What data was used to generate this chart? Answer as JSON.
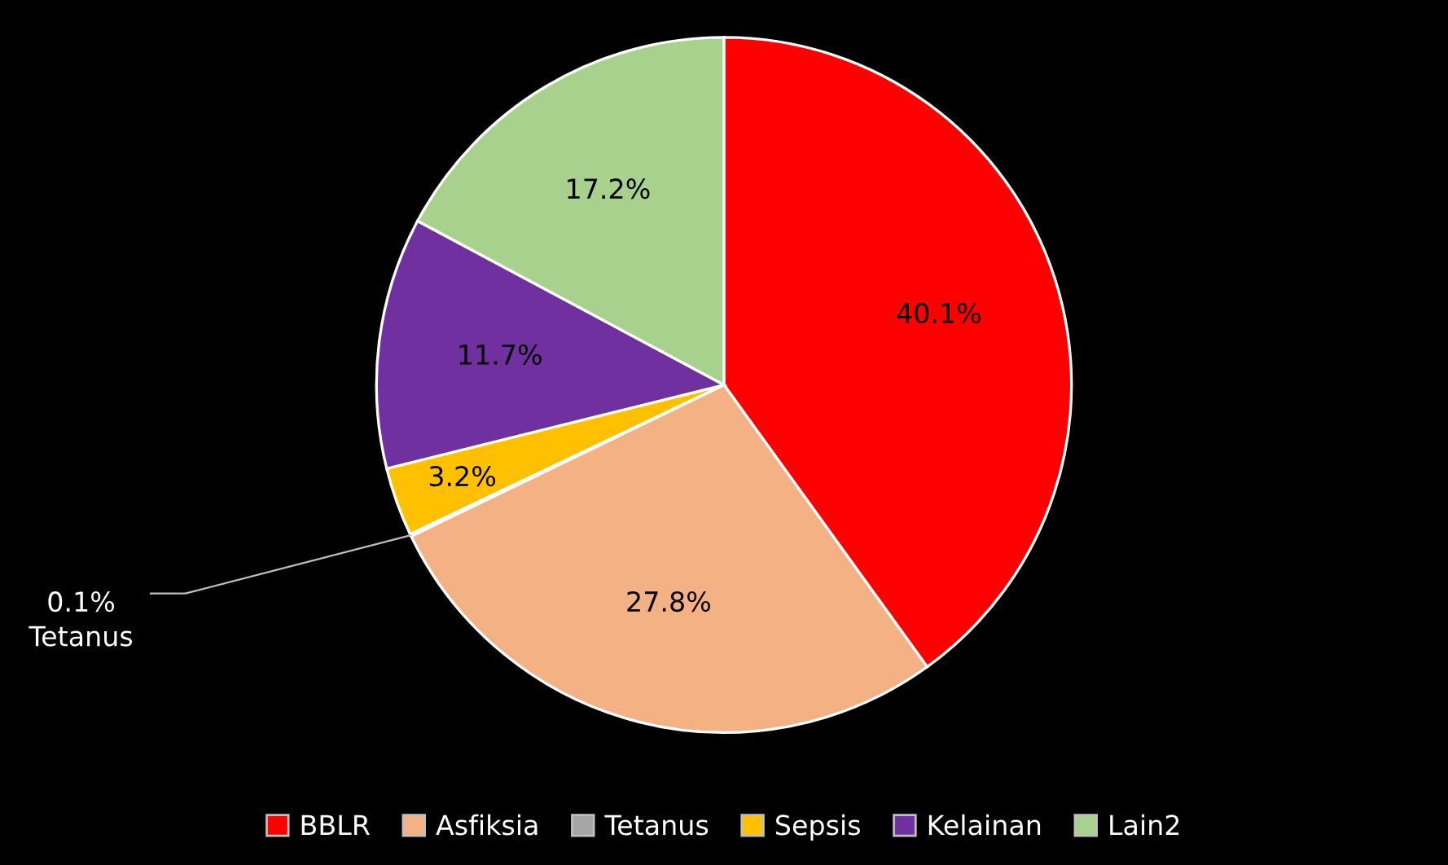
{
  "chart_data": {
    "type": "pie",
    "categories": [
      "BBLR",
      "Asfiksia",
      "Tetanus",
      "Sepsis",
      "Kelainan",
      "Lain2"
    ],
    "values": [
      40.1,
      27.8,
      0.1,
      3.2,
      11.7,
      17.2
    ],
    "colors": [
      "#ff0000",
      "#f4b183",
      "#a5a5a5",
      "#ffc000",
      "#7030a0",
      "#a9d18e"
    ],
    "value_labels": [
      "40.1%",
      "27.8%",
      "0.1%\nTetanus",
      "3.2%",
      "11.7%",
      "17.2%"
    ],
    "legend": "bottom"
  }
}
